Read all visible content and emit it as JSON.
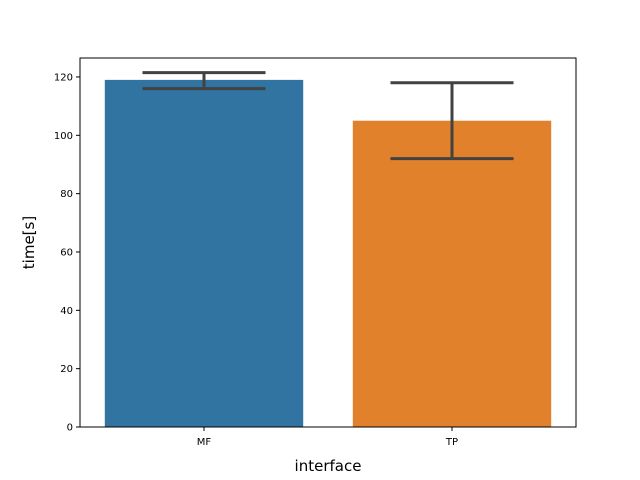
{
  "chart_data": {
    "type": "bar",
    "title": "",
    "xlabel": "interface",
    "ylabel": "time[s]",
    "categories": [
      "MF",
      "TP"
    ],
    "values": [
      119,
      105
    ],
    "error_bars": [
      {
        "low": 116,
        "high": 121.5
      },
      {
        "low": 92,
        "high": 118
      }
    ],
    "bar_colors": [
      "#3274a1",
      "#e1812c"
    ],
    "errorbar_color": "#424242",
    "ylim": [
      0,
      126.5
    ],
    "yticks": [
      0,
      20,
      40,
      60,
      80,
      100,
      120
    ],
    "grid": false,
    "legend": "none"
  }
}
